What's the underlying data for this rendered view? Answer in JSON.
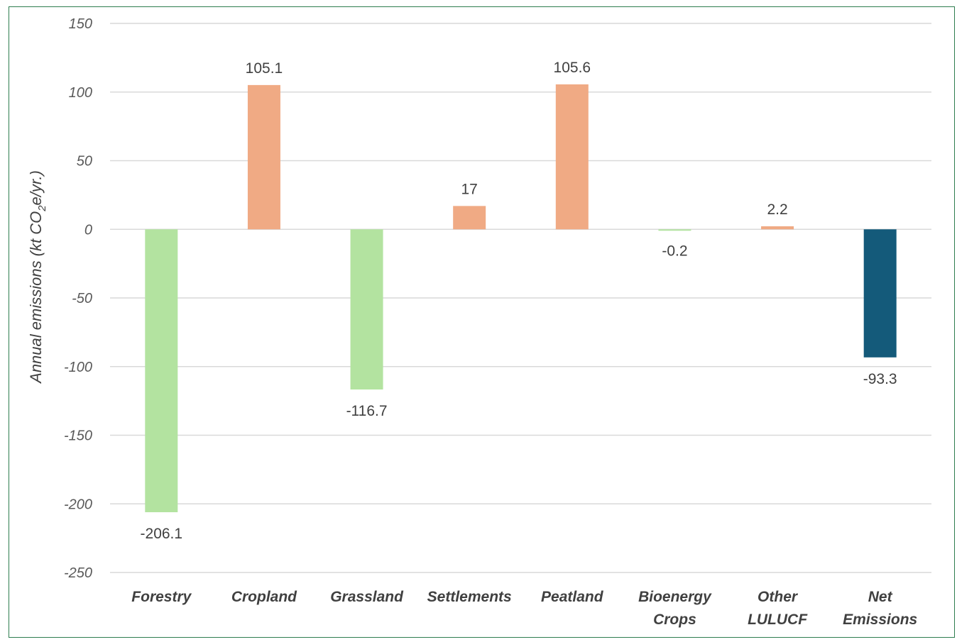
{
  "chart_data": {
    "type": "bar",
    "ylabel": "Annual emissions (kt CO2e/yr.)",
    "ylabel_parts": {
      "pre": "Annual emissions (kt CO",
      "sub": "2",
      "post": "e/yr.)"
    },
    "ylim": [
      -250,
      150
    ],
    "yticks": [
      150,
      100,
      50,
      0,
      -50,
      -100,
      -150,
      -200,
      -250
    ],
    "grid": true,
    "categories": [
      [
        "Forestry"
      ],
      [
        "Cropland"
      ],
      [
        "Grassland"
      ],
      [
        "Settlements"
      ],
      [
        "Peatland"
      ],
      [
        "Bioenergy",
        "Crops"
      ],
      [
        "Other",
        "LULUCF"
      ],
      [
        "Net",
        "Emissions"
      ]
    ],
    "values": [
      -206.1,
      105.1,
      -116.7,
      17,
      105.6,
      -0.2,
      2.2,
      -93.3
    ],
    "data_labels": [
      "-206.1",
      "105.1",
      "-116.7",
      "17",
      "105.6",
      "-0.2",
      "2.2",
      "-93.3"
    ],
    "colors": {
      "negative": "#b3e3a0",
      "positive": "#f0aa84",
      "net": "#145a7a",
      "grid": "#d9d9d9"
    }
  }
}
